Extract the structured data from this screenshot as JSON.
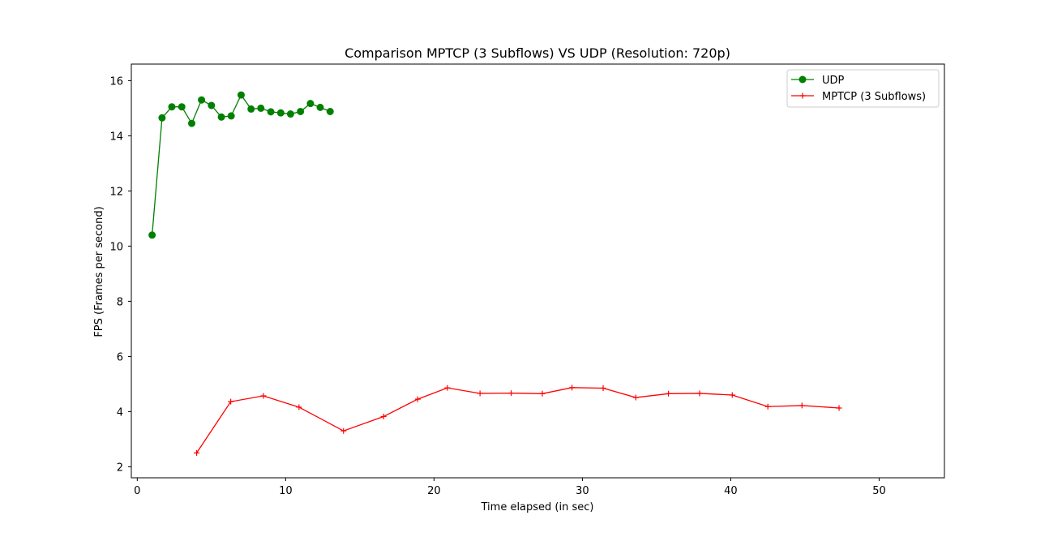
{
  "chart_data": {
    "type": "line",
    "title": "Comparison MPTCP (3 Subflows) VS UDP (Resolution: 720p)",
    "xlabel": "Time elapsed (in sec)",
    "ylabel": "FPS (Frames per second)",
    "xlim": [
      -0.4,
      54.4
    ],
    "ylim": [
      1.6,
      16.6
    ],
    "xticks": [
      0,
      10,
      20,
      30,
      40,
      50
    ],
    "yticks": [
      2,
      4,
      6,
      8,
      10,
      12,
      14,
      16
    ],
    "grid": false,
    "legend_position": "top-right",
    "series": [
      {
        "name": "UDP",
        "color": "#008000",
        "marker": "circle",
        "x": [
          1.0,
          1.67,
          2.33,
          3.0,
          3.67,
          4.33,
          5.0,
          5.67,
          6.33,
          7.0,
          7.67,
          8.33,
          9.0,
          9.67,
          10.33,
          11.0,
          11.67,
          12.33,
          13.0
        ],
        "y": [
          10.4,
          14.65,
          15.05,
          15.05,
          14.45,
          15.3,
          15.1,
          14.68,
          14.72,
          15.48,
          14.97,
          15.0,
          14.87,
          14.83,
          14.79,
          14.88,
          15.17,
          15.03,
          14.88
        ]
      },
      {
        "name": "MPTCP (3 Subflows)",
        "color": "#ff0000",
        "marker": "plus",
        "x": [
          4.0,
          6.3,
          8.5,
          10.9,
          13.9,
          16.6,
          18.9,
          20.9,
          23.1,
          25.2,
          27.3,
          29.3,
          31.4,
          33.6,
          35.8,
          37.9,
          40.1,
          42.5,
          44.8,
          47.3
        ],
        "y": [
          2.5,
          4.36,
          4.57,
          4.16,
          3.3,
          3.82,
          4.45,
          4.86,
          4.66,
          4.67,
          4.65,
          4.87,
          4.85,
          4.51,
          4.65,
          4.66,
          4.6,
          4.18,
          4.22,
          4.13
        ]
      }
    ]
  }
}
